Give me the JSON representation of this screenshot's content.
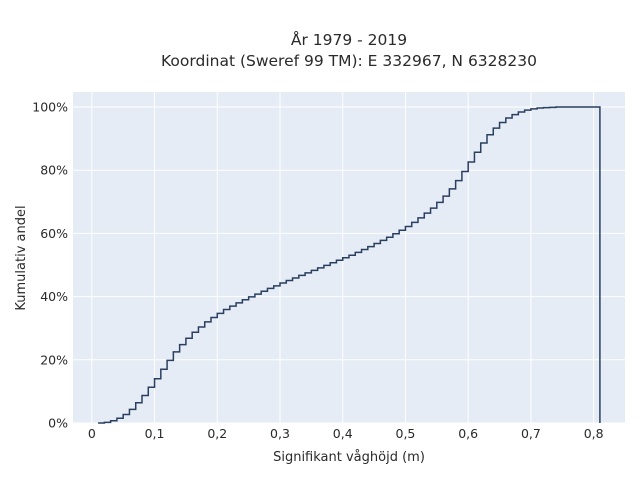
{
  "chart_data": {
    "type": "line",
    "step": true,
    "title_line1": "År 1979 - 2019",
    "title_line2": "Koordinat (Sweref 99 TM): E 332967, N 6328230",
    "xlabel": "Signifikant våghöjd (m)",
    "ylabel": "Kumulativ andel",
    "xlim": [
      -0.03,
      0.85
    ],
    "ylim": [
      0,
      1
    ],
    "x_ticks": [
      0,
      0.1,
      0.2,
      0.3,
      0.4,
      0.5,
      0.6,
      0.7,
      0.8
    ],
    "x_tick_labels": [
      "0",
      "0,1",
      "0,2",
      "0,3",
      "0,4",
      "0,5",
      "0,6",
      "0,7",
      "0,8"
    ],
    "y_ticks": [
      0,
      0.2,
      0.4,
      0.6,
      0.8,
      1.0
    ],
    "y_tick_labels": [
      "0%",
      "20%",
      "40%",
      "60%",
      "80%",
      "100%"
    ],
    "grid": true,
    "legend": "none",
    "colors": {
      "line": "#2a3f5f",
      "plot_bg": "#e5ecf6",
      "grid": "#ffffff"
    },
    "x": [
      0.01,
      0.02,
      0.03,
      0.04,
      0.05,
      0.06,
      0.07,
      0.08,
      0.09,
      0.1,
      0.11,
      0.12,
      0.13,
      0.14,
      0.15,
      0.16,
      0.17,
      0.18,
      0.19,
      0.2,
      0.21,
      0.22,
      0.23,
      0.24,
      0.25,
      0.26,
      0.27,
      0.28,
      0.29,
      0.3,
      0.31,
      0.32,
      0.33,
      0.34,
      0.35,
      0.36,
      0.37,
      0.38,
      0.39,
      0.4,
      0.41,
      0.42,
      0.43,
      0.44,
      0.45,
      0.46,
      0.47,
      0.48,
      0.49,
      0.5,
      0.51,
      0.52,
      0.53,
      0.54,
      0.55,
      0.56,
      0.57,
      0.58,
      0.59,
      0.6,
      0.61,
      0.62,
      0.63,
      0.64,
      0.65,
      0.66,
      0.67,
      0.68,
      0.69,
      0.7,
      0.71,
      0.72,
      0.73,
      0.74,
      0.75,
      0.76,
      0.77,
      0.78,
      0.79,
      0.8,
      0.81
    ],
    "y": [
      0.0,
      0.002,
      0.007,
      0.015,
      0.027,
      0.043,
      0.064,
      0.087,
      0.113,
      0.14,
      0.17,
      0.198,
      0.225,
      0.248,
      0.268,
      0.287,
      0.304,
      0.32,
      0.334,
      0.347,
      0.359,
      0.37,
      0.38,
      0.39,
      0.399,
      0.408,
      0.417,
      0.426,
      0.434,
      0.443,
      0.451,
      0.459,
      0.467,
      0.475,
      0.483,
      0.491,
      0.499,
      0.507,
      0.515,
      0.523,
      0.531,
      0.54,
      0.549,
      0.558,
      0.568,
      0.578,
      0.588,
      0.599,
      0.61,
      0.622,
      0.635,
      0.649,
      0.664,
      0.68,
      0.698,
      0.718,
      0.741,
      0.767,
      0.796,
      0.826,
      0.857,
      0.886,
      0.912,
      0.933,
      0.951,
      0.965,
      0.976,
      0.984,
      0.99,
      0.994,
      0.997,
      0.998,
      0.999,
      1.0,
      1.0,
      1.0,
      1.0,
      1.0,
      1.0,
      1.0,
      1.0
    ]
  }
}
